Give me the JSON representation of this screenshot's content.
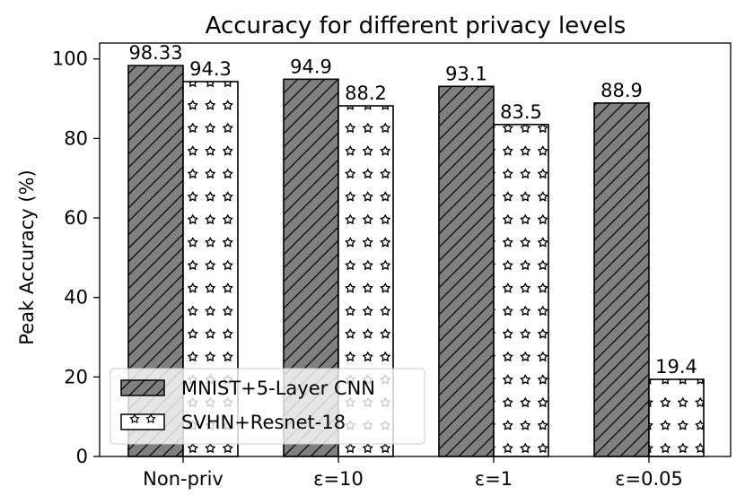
{
  "chart_data": {
    "type": "bar",
    "title": "Accuracy for different privacy levels",
    "xlabel": "",
    "ylabel": "Peak Accuracy (%)",
    "categories": [
      "Non-priv",
      "ε=10",
      "ε=1",
      "ε=0.05"
    ],
    "ylim": [
      0,
      104
    ],
    "yticks": [
      0,
      20,
      40,
      60,
      80,
      100
    ],
    "grid": false,
    "legend_position": "lower-left",
    "series": [
      {
        "name": "MNIST+5-Layer CNN",
        "values": [
          98.33,
          94.9,
          93.1,
          88.9
        ],
        "labels": [
          "98.33",
          "94.9",
          "93.1",
          "88.9"
        ],
        "color": "#808080",
        "pattern": "diagonal-hatch"
      },
      {
        "name": "SVHN+Resnet-18",
        "values": [
          94.3,
          88.2,
          83.5,
          19.4
        ],
        "labels": [
          "94.3",
          "88.2",
          "83.5",
          "19.4"
        ],
        "color": "#ffffff",
        "pattern": "stars"
      }
    ]
  }
}
